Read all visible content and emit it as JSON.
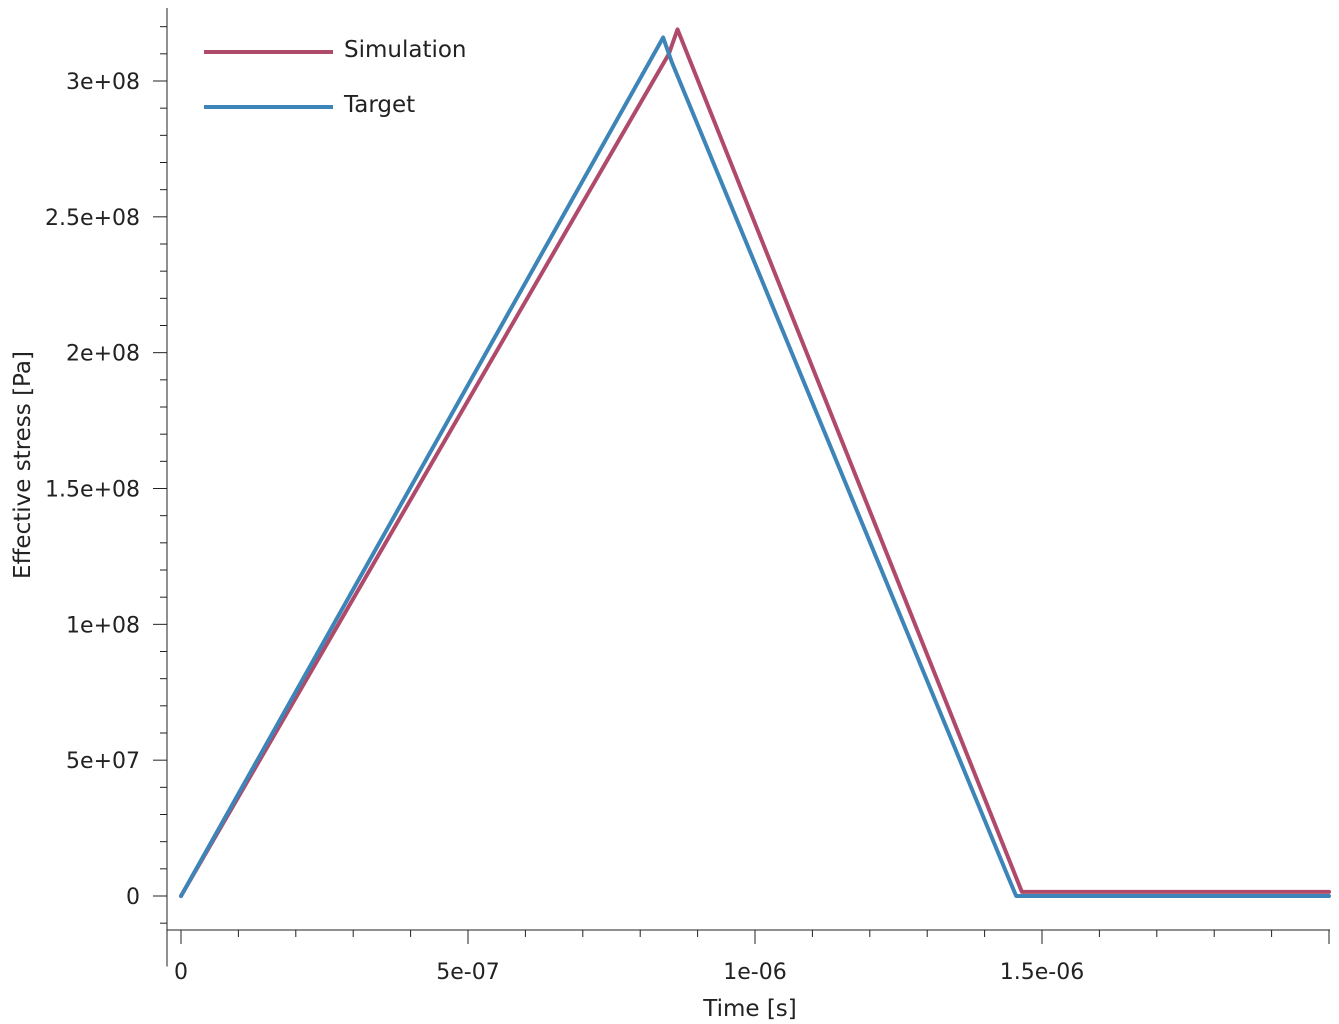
{
  "chart_data": {
    "type": "line",
    "title": "",
    "xlabel": "Time [s]",
    "ylabel": "Effective stress [Pa]",
    "xlim": [
      0,
      2e-06
    ],
    "ylim": [
      -23000000.0,
      327000000.0
    ],
    "x_ticks": [
      {
        "value": 0,
        "label": "0"
      },
      {
        "value": 5e-07,
        "label": "5e-07"
      },
      {
        "value": 1e-06,
        "label": "1e-06"
      },
      {
        "value": 1.5e-06,
        "label": "1.5e-06"
      }
    ],
    "y_ticks": [
      {
        "value": 0,
        "label": "0"
      },
      {
        "value": 50000000.0,
        "label": "5e+07"
      },
      {
        "value": 100000000.0,
        "label": "1e+08"
      },
      {
        "value": 150000000.0,
        "label": "1.5e+08"
      },
      {
        "value": 200000000.0,
        "label": "2e+08"
      },
      {
        "value": 250000000.0,
        "label": "2.5e+08"
      },
      {
        "value": 300000000.0,
        "label": "3e+08"
      }
    ],
    "grid": false,
    "legend_position": "top-left",
    "series": [
      {
        "name": "Simulation",
        "color": "#b04a6b",
        "x": [
          0,
          8.5e-07,
          8.65e-07,
          1.465e-06,
          2e-06
        ],
        "y": [
          0,
          310000000.0,
          319000000.0,
          1500000.0,
          1500000.0
        ]
      },
      {
        "name": "Target",
        "color": "#3d85b8",
        "x": [
          0,
          8.4e-07,
          8.55e-07,
          1.44e-06,
          1.455e-06,
          2e-06
        ],
        "y": [
          0,
          316000000.0,
          307000000.0,
          7500000.0,
          0,
          0
        ]
      }
    ]
  }
}
